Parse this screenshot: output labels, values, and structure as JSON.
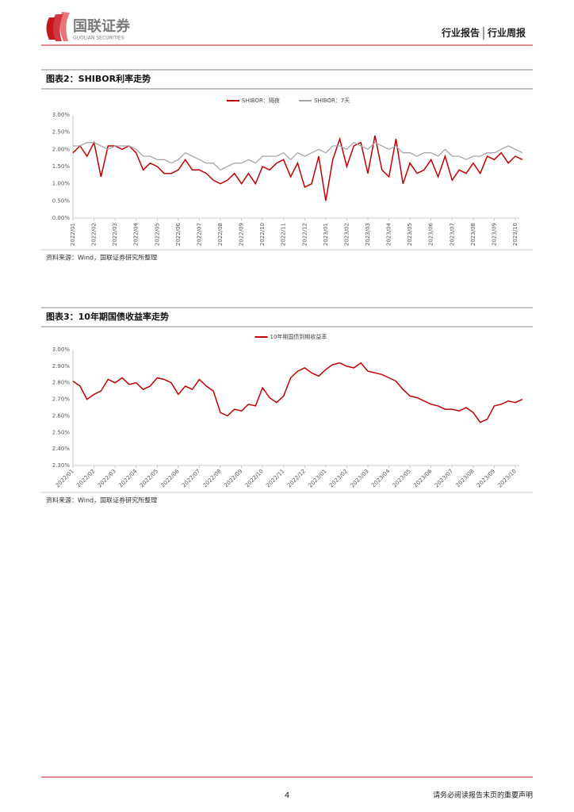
{
  "header": {
    "logo_cn": "国联证券",
    "logo_en": "GUOLIAN SECURITIES",
    "report_type": "行业报告",
    "report_subtype": "行业周报"
  },
  "chart_data": [
    {
      "type": "line",
      "title": "图表2：SHIBOR利率走势",
      "source": "资料来源：Wind，国联证券研究所整理",
      "ylim": [
        0,
        3
      ],
      "yticks": [
        {
          "value": 0,
          "label": "0.00%"
        },
        {
          "value": 0.5,
          "label": "0.50%"
        },
        {
          "value": 1,
          "label": "1.00%"
        },
        {
          "value": 1.5,
          "label": "1.50%"
        },
        {
          "value": 2,
          "label": "2.00%"
        },
        {
          "value": 2.5,
          "label": "2.50%"
        },
        {
          "value": 3,
          "label": "3.00%"
        }
      ],
      "xticks": [
        "2022/01",
        "2022/02",
        "2022/03",
        "2022/04",
        "2022/05",
        "2022/06",
        "2022/07",
        "2022/08",
        "2022/09",
        "2022/10",
        "2022/11",
        "2022/12",
        "2023/01",
        "2023/02",
        "2023/03",
        "2023/04",
        "2023/05",
        "2023/06",
        "2023/07",
        "2023/08",
        "2023/09",
        "2023/10"
      ],
      "grid": false,
      "legend": "top",
      "series": [
        {
          "name": "SHIBOR：隔夜",
          "color": "#c00000",
          "values": [
            1.9,
            2.1,
            1.8,
            2.2,
            1.2,
            2.1,
            2.1,
            2.0,
            2.1,
            1.9,
            1.4,
            1.6,
            1.5,
            1.3,
            1.3,
            1.4,
            1.7,
            1.4,
            1.4,
            1.3,
            1.1,
            1.0,
            1.1,
            1.3,
            1.0,
            1.3,
            1.0,
            1.5,
            1.4,
            1.6,
            1.7,
            1.2,
            1.6,
            0.9,
            1.0,
            1.8,
            0.5,
            1.7,
            2.3,
            1.5,
            2.1,
            2.2,
            1.3,
            2.4,
            1.4,
            1.2,
            2.3,
            1.0,
            1.6,
            1.3,
            1.4,
            1.7,
            1.2,
            1.8,
            1.1,
            1.4,
            1.3,
            1.6,
            1.3,
            1.8,
            1.7,
            1.9,
            1.6,
            1.8,
            1.7
          ]
        },
        {
          "name": "SHIBOR：7天",
          "color": "#a6a6a6",
          "values": [
            2.1,
            2.1,
            2.2,
            2.2,
            2.1,
            2.0,
            2.1,
            2.1,
            2.1,
            2.0,
            1.8,
            1.8,
            1.7,
            1.7,
            1.6,
            1.7,
            1.9,
            1.8,
            1.7,
            1.6,
            1.6,
            1.4,
            1.5,
            1.6,
            1.6,
            1.7,
            1.6,
            1.8,
            1.8,
            1.8,
            1.9,
            1.7,
            1.9,
            1.8,
            1.9,
            2.0,
            1.9,
            2.1,
            2.1,
            2.0,
            2.2,
            2.1,
            2.0,
            2.2,
            2.1,
            2.0,
            2.1,
            1.9,
            1.9,
            1.8,
            1.9,
            1.9,
            1.8,
            2.0,
            1.8,
            1.8,
            1.7,
            1.8,
            1.8,
            1.9,
            1.9,
            2.0,
            2.1,
            2.0,
            1.9
          ]
        }
      ]
    },
    {
      "type": "line",
      "title": "图表3：10年期国债收益率走势",
      "source": "资料来源：Wind，国联证券研究所整理",
      "ylim": [
        2.3,
        3
      ],
      "yticks": [
        {
          "value": 2.3,
          "label": "2.30%"
        },
        {
          "value": 2.4,
          "label": "2.40%"
        },
        {
          "value": 2.5,
          "label": "2.50%"
        },
        {
          "value": 2.6,
          "label": "2.60%"
        },
        {
          "value": 2.7,
          "label": "2.70%"
        },
        {
          "value": 2.8,
          "label": "2.80%"
        },
        {
          "value": 2.9,
          "label": "2.90%"
        },
        {
          "value": 3,
          "label": "3.00%"
        }
      ],
      "xticks": [
        "2022/01",
        "2022/02",
        "2022/03",
        "2022/04",
        "2022/05",
        "2022/06",
        "2022/07",
        "2022/08",
        "2022/09",
        "2022/10",
        "2022/11",
        "2022/12",
        "2023/01",
        "2023/02",
        "2023/03",
        "2023/04",
        "2023/05",
        "2023/06",
        "2023/07",
        "2023/08",
        "2023/09",
        "2023/10"
      ],
      "grid": false,
      "legend": "top",
      "series": [
        {
          "name": "10年期国债到期收益率",
          "color": "#c00000",
          "values": [
            2.81,
            2.78,
            2.7,
            2.73,
            2.75,
            2.82,
            2.8,
            2.83,
            2.79,
            2.8,
            2.76,
            2.78,
            2.83,
            2.82,
            2.8,
            2.73,
            2.78,
            2.76,
            2.82,
            2.78,
            2.75,
            2.62,
            2.6,
            2.64,
            2.63,
            2.67,
            2.66,
            2.77,
            2.71,
            2.68,
            2.72,
            2.83,
            2.87,
            2.89,
            2.86,
            2.84,
            2.88,
            2.91,
            2.92,
            2.9,
            2.89,
            2.92,
            2.87,
            2.86,
            2.85,
            2.83,
            2.81,
            2.76,
            2.72,
            2.71,
            2.69,
            2.67,
            2.66,
            2.64,
            2.64,
            2.63,
            2.65,
            2.62,
            2.56,
            2.58,
            2.66,
            2.67,
            2.69,
            2.68,
            2.7
          ]
        }
      ]
    }
  ],
  "footer": {
    "page_number": "4",
    "disclaimer": "请务必阅读报告末页的重要声明"
  }
}
